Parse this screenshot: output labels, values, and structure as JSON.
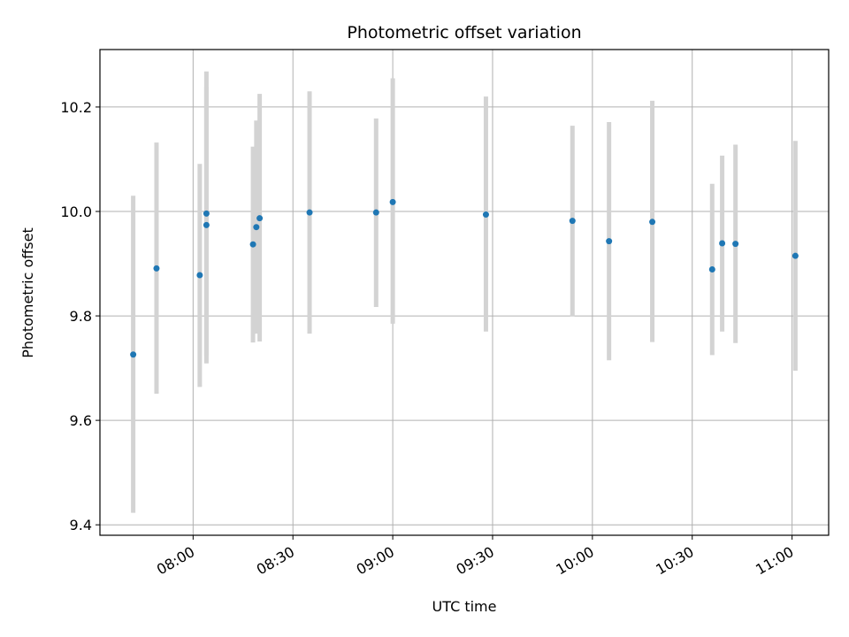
{
  "chart_data": {
    "type": "scatter",
    "title": "Photometric offset variation",
    "xlabel": "UTC time",
    "ylabel": "Photometric offset",
    "xlim": [
      "07:32",
      "11:11"
    ],
    "ylim": [
      9.38,
      10.31
    ],
    "x_ticks": [
      "08:00",
      "08:30",
      "09:00",
      "09:30",
      "10:00",
      "10:30",
      "11:00"
    ],
    "y_ticks": [
      "9.4",
      "9.6",
      "9.8",
      "10.0",
      "10.2"
    ],
    "grid": true,
    "colors": {
      "point": "#1f77b4",
      "errorbar": "#d3d3d3",
      "grid": "#b0b0b0",
      "axes": "#000000"
    },
    "points": [
      {
        "t": "07:42",
        "y": 9.726,
        "err_low": 9.423,
        "err_high": 10.03
      },
      {
        "t": "07:49",
        "y": 9.891,
        "err_low": 9.651,
        "err_high": 10.132
      },
      {
        "t": "08:02",
        "y": 9.878,
        "err_low": 9.664,
        "err_high": 10.091
      },
      {
        "t": "08:04",
        "y": 9.996,
        "err_low": 9.724,
        "err_high": 10.268
      },
      {
        "t": "08:04",
        "y": 9.974,
        "err_low": 9.709,
        "err_high": 10.238
      },
      {
        "t": "08:18",
        "y": 9.937,
        "err_low": 9.749,
        "err_high": 10.124
      },
      {
        "t": "08:19",
        "y": 9.97,
        "err_low": 9.766,
        "err_high": 10.174
      },
      {
        "t": "08:20",
        "y": 9.987,
        "err_low": 9.751,
        "err_high": 10.225
      },
      {
        "t": "08:35",
        "y": 9.998,
        "err_low": 9.766,
        "err_high": 10.23
      },
      {
        "t": "08:55",
        "y": 9.998,
        "err_low": 9.817,
        "err_high": 10.178
      },
      {
        "t": "09:00",
        "y": 10.018,
        "err_low": 9.785,
        "err_high": 10.255
      },
      {
        "t": "09:28",
        "y": 9.994,
        "err_low": 9.77,
        "err_high": 10.22
      },
      {
        "t": "09:54",
        "y": 9.982,
        "err_low": 9.799,
        "err_high": 10.164
      },
      {
        "t": "10:05",
        "y": 9.943,
        "err_low": 9.715,
        "err_high": 10.171
      },
      {
        "t": "10:18",
        "y": 9.98,
        "err_low": 9.75,
        "err_high": 10.212
      },
      {
        "t": "10:36",
        "y": 9.889,
        "err_low": 9.725,
        "err_high": 10.053
      },
      {
        "t": "10:39",
        "y": 9.939,
        "err_low": 9.77,
        "err_high": 10.107
      },
      {
        "t": "10:43",
        "y": 9.938,
        "err_low": 9.748,
        "err_high": 10.128
      },
      {
        "t": "11:01",
        "y": 9.915,
        "err_low": 9.695,
        "err_high": 10.135
      }
    ]
  }
}
